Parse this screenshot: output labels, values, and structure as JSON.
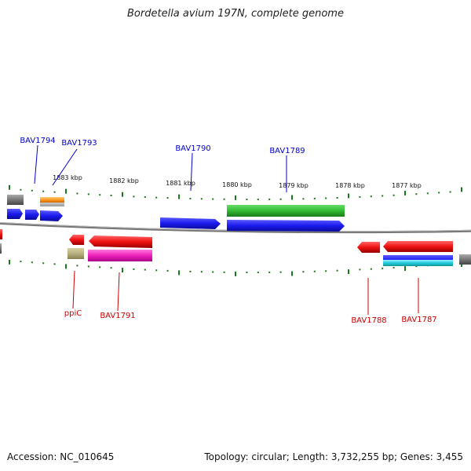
{
  "title": "Bordetella avium 197N, complete genome",
  "footer": {
    "accession": "Accession: NC_010645",
    "summary": "Topology: circular; Length: 3,732,255 bp; Genes: 3,455"
  },
  "colors": {
    "forward_gene": "#1a1aff",
    "reverse_gene": "#ff1a1a",
    "forward_label": "#0000cc",
    "reverse_label": "#cc0000",
    "tick": "#1a7a1a",
    "backbone": "#888888"
  },
  "ruler": [
    {
      "label": "1883 kbp"
    },
    {
      "label": "1882 kbp"
    },
    {
      "label": "1881 kbp"
    },
    {
      "label": "1880 kbp"
    },
    {
      "label": "1879 kbp"
    },
    {
      "label": "1878 kbp"
    },
    {
      "label": "1877 kbp"
    }
  ],
  "forward_labels": [
    "BAV1794",
    "BAV1793",
    "BAV1790",
    "BAV1789"
  ],
  "reverse_labels": [
    "ppiC",
    "BAV1791",
    "BAV1788",
    "BAV1787"
  ],
  "feature_colors": {
    "blue": "#1a1aee",
    "red": "#ee1111",
    "green": "#33bb33",
    "magenta": "#ee22bb",
    "cyan": "#22ccdd",
    "orange": "#ff9922",
    "gray": "#777777",
    "khaki": "#b8b080"
  }
}
